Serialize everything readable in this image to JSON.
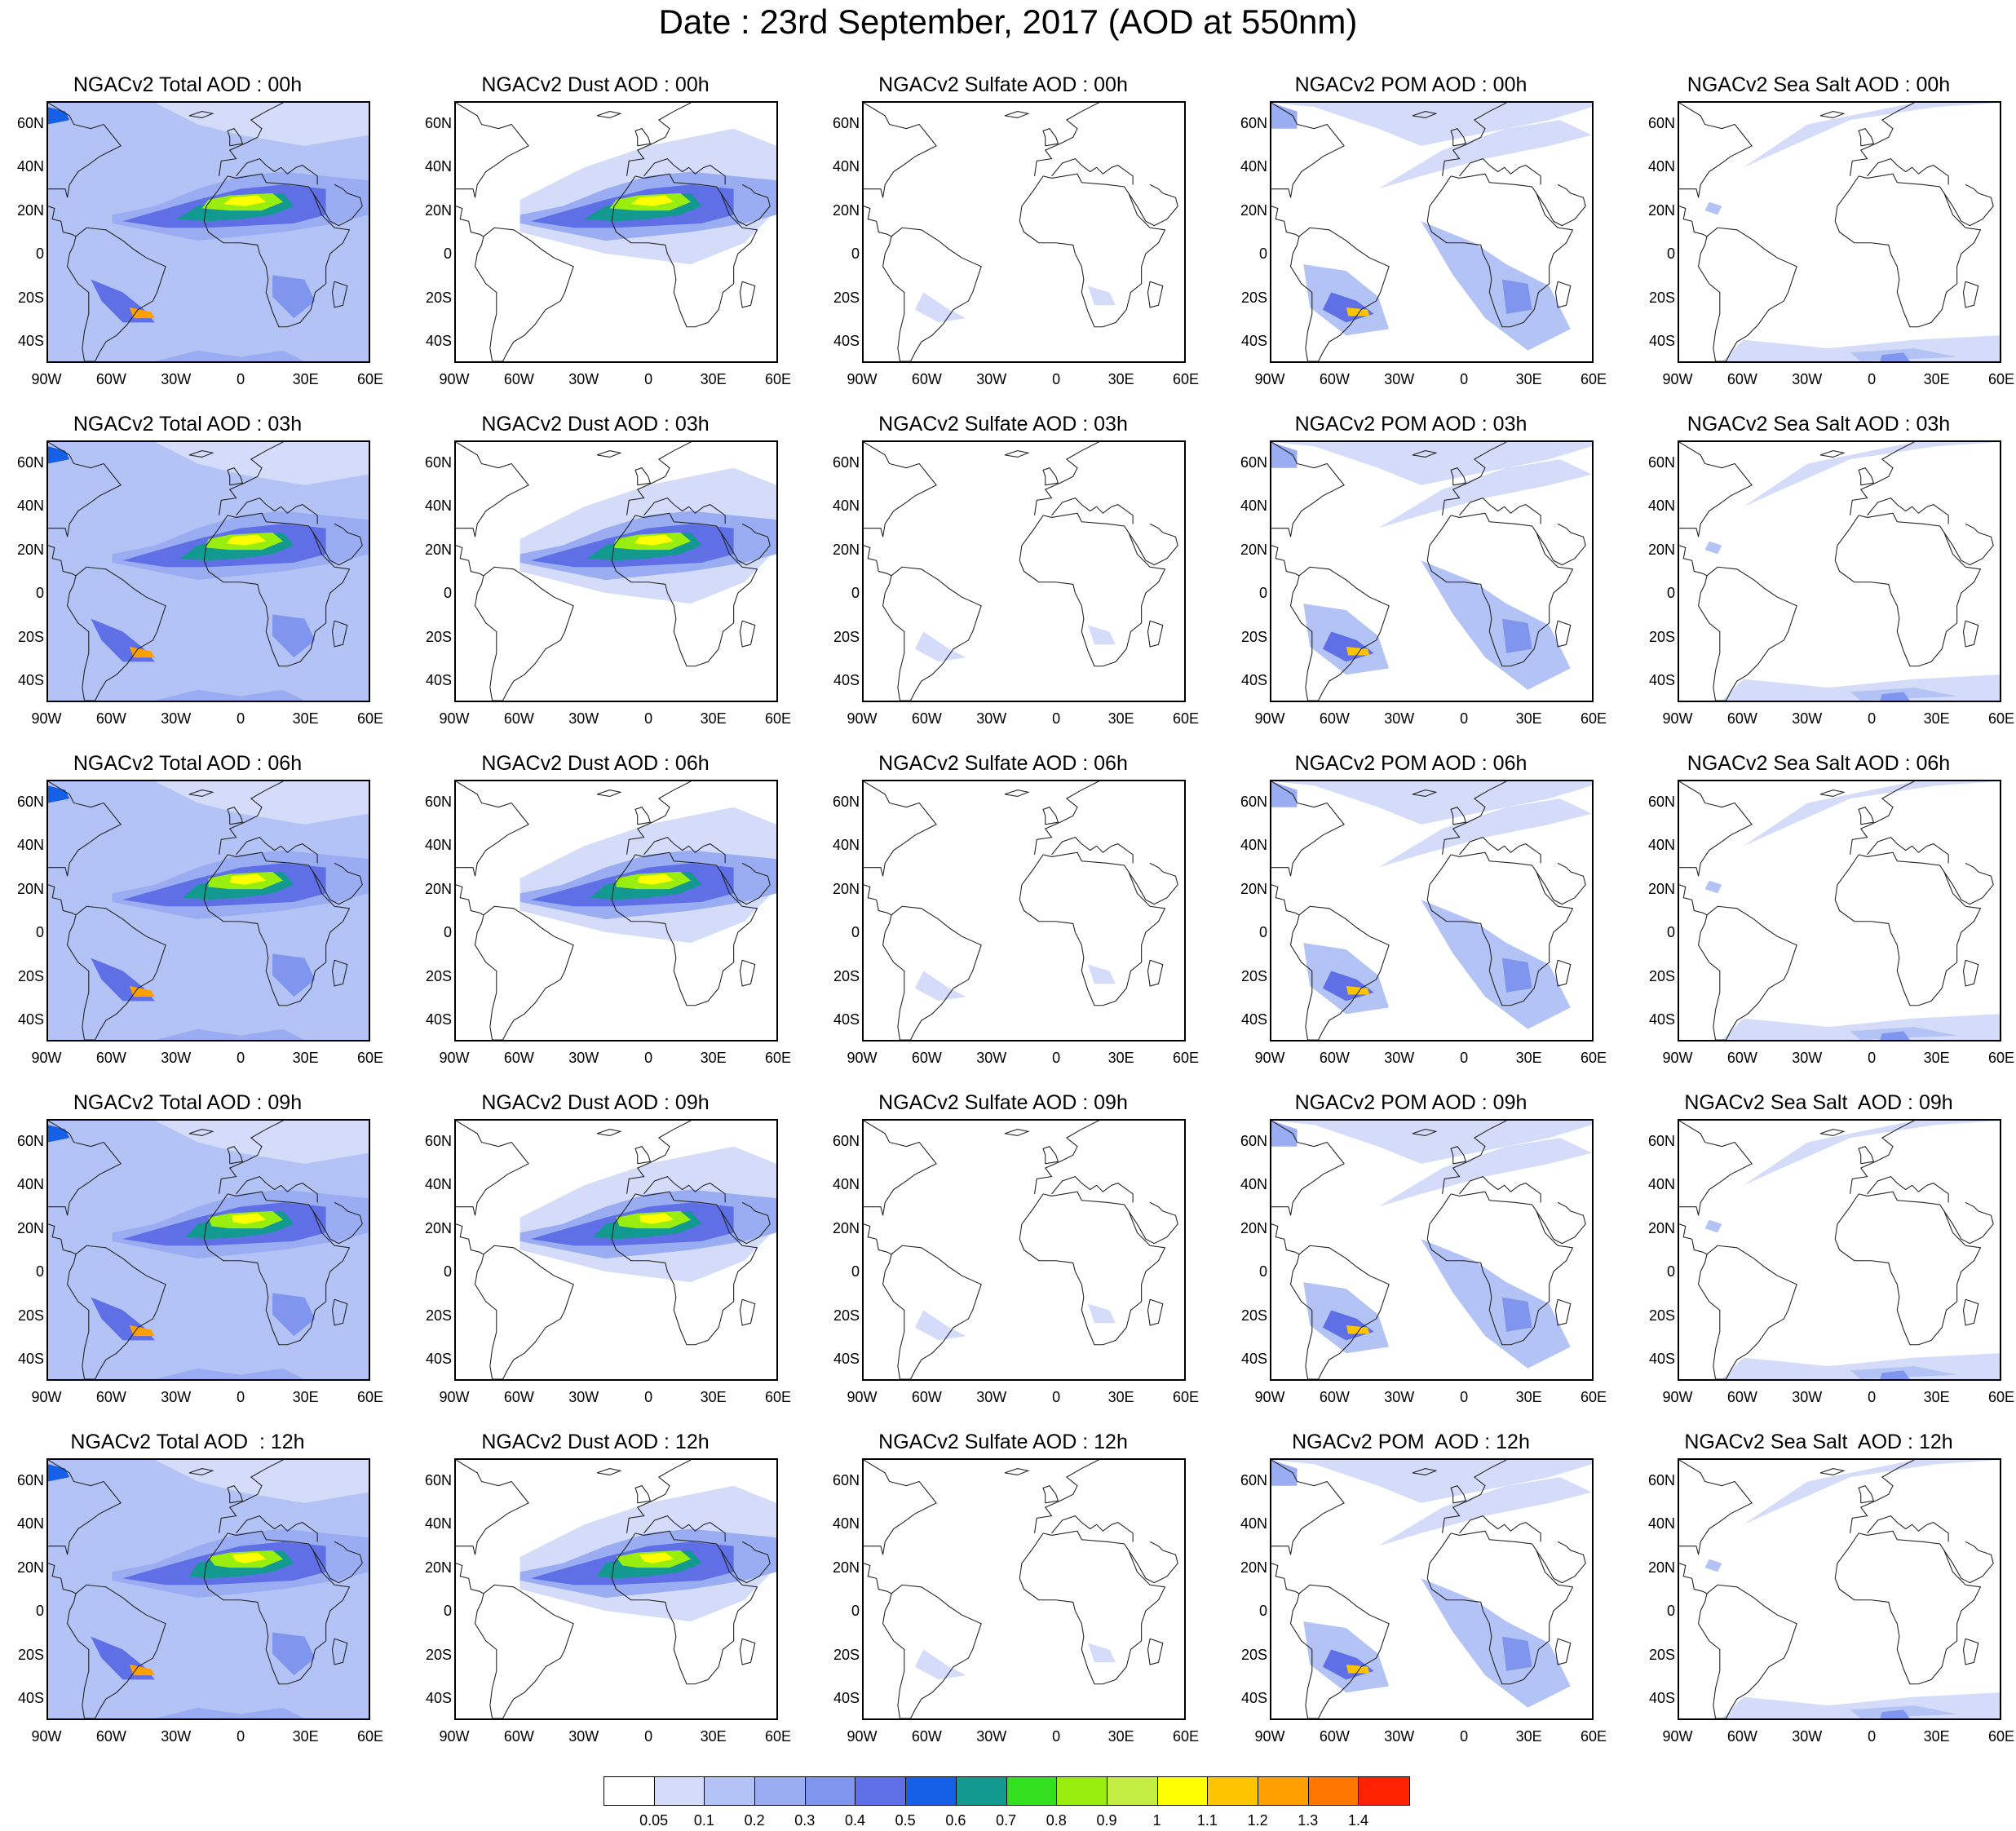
{
  "title": "Date : 23rd September, 2017 (AOD at 550nm)",
  "grid": {
    "rows": [
      "00h",
      "03h",
      "06h",
      "09h",
      "12h"
    ],
    "columns": [
      "Total",
      "Dust",
      "Sulfate",
      "POM",
      "Sea Salt"
    ]
  },
  "panels": [
    [
      "NGACv2 Total AOD : 00h",
      "NGACv2 Dust AOD : 00h",
      "NGACv2 Sulfate AOD : 00h",
      "NGACv2 POM AOD : 00h",
      "NGACv2 Sea Salt AOD : 00h"
    ],
    [
      "NGACv2 Total AOD : 03h",
      "NGACv2 Dust AOD : 03h",
      "NGACv2 Sulfate AOD : 03h",
      "NGACv2 POM AOD : 03h",
      "NGACv2 Sea Salt AOD : 03h"
    ],
    [
      "NGACv2 Total AOD : 06h",
      "NGACv2 Dust AOD : 06h",
      "NGACv2 Sulfate AOD : 06h",
      "NGACv2 POM AOD : 06h",
      "NGACv2 Sea Salt AOD : 06h"
    ],
    [
      "NGACv2 Total AOD : 09h",
      "NGACv2 Dust AOD : 09h",
      "NGACv2 Sulfate AOD : 09h",
      "NGACv2 POM AOD : 09h",
      "NGACv2 Sea Salt  AOD : 09h"
    ],
    [
      "NGACv2 Total AOD  : 12h",
      "NGACv2 Dust AOD : 12h",
      "NGACv2 Sulfate AOD : 12h",
      "NGACv2 POM  AOD : 12h",
      "NGACv2 Sea Salt  AOD : 12h"
    ]
  ],
  "lat_ticks": [
    "60N",
    "40N",
    "20N",
    "0",
    "20S",
    "40S"
  ],
  "lon_ticks": [
    "90W",
    "60W",
    "30W",
    "0",
    "30E",
    "60E"
  ],
  "colorbar": {
    "levels": [
      "0.05",
      "0.1",
      "0.2",
      "0.3",
      "0.4",
      "0.5",
      "0.6",
      "0.7",
      "0.8",
      "0.9",
      "1",
      "1.1",
      "1.2",
      "1.3",
      "1.4"
    ],
    "colors": [
      "#ffffff",
      "#d4dcfa",
      "#b4c3f5",
      "#9aadf2",
      "#7f95ee",
      "#5f6fe6",
      "#1660e8",
      "#129a90",
      "#33e020",
      "#99ee10",
      "#c4ee44",
      "#ffff00",
      "#ffc400",
      "#ffa000",
      "#ff7700",
      "#ff2200"
    ]
  }
}
